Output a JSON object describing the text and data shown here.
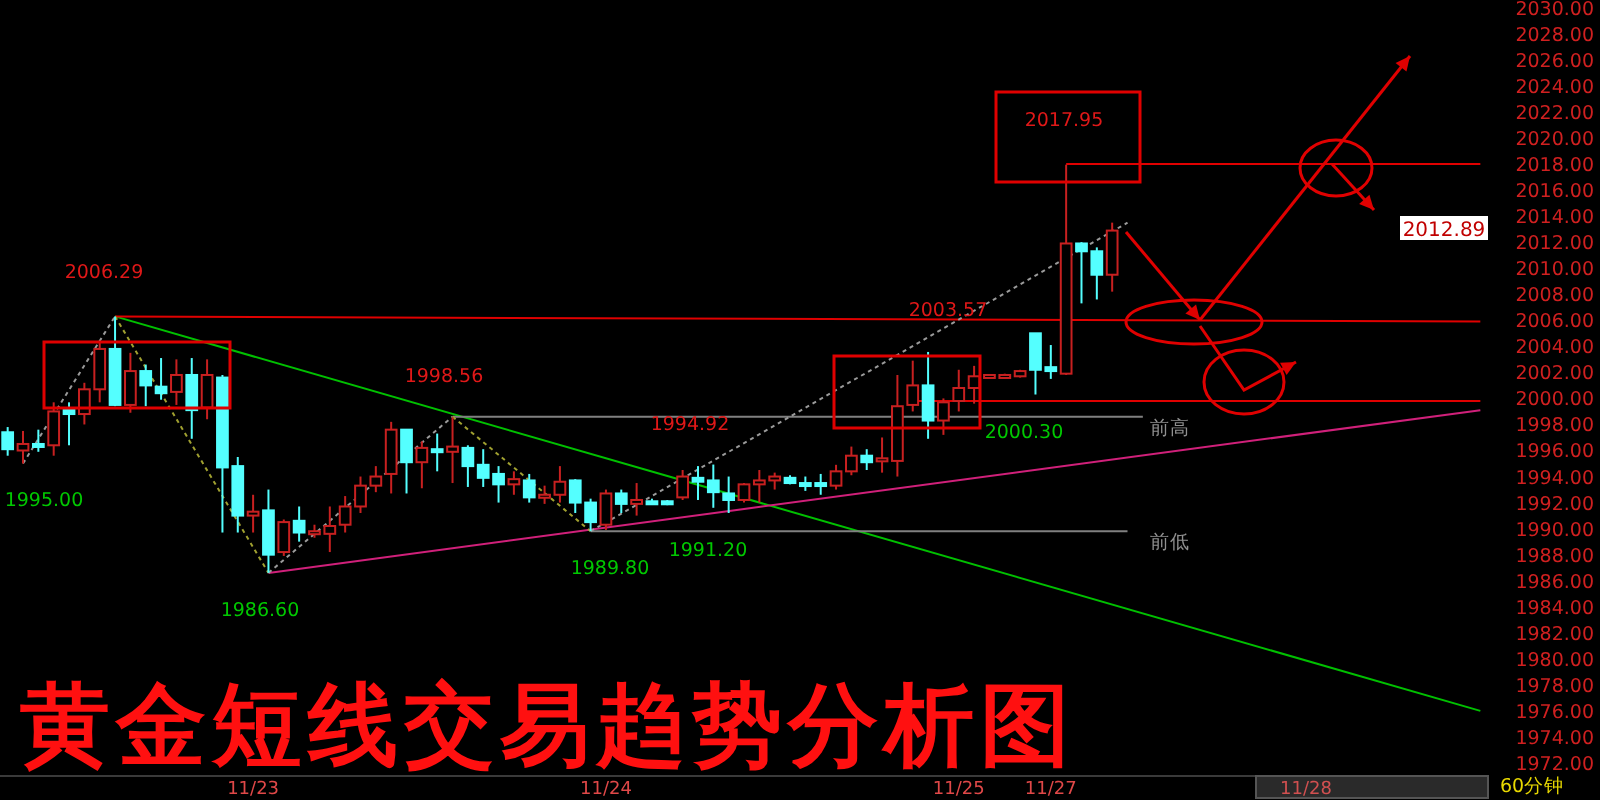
{
  "chart_data": {
    "type": "candlestick",
    "title": "黄金短线交易趋势分析图",
    "categories": [
      null,
      null,
      null,
      null,
      null,
      null,
      null,
      null,
      null,
      null,
      null,
      null,
      null,
      null,
      null,
      null,
      "11/23",
      null,
      null,
      null,
      null,
      null,
      null,
      null,
      null,
      null,
      null,
      null,
      null,
      null,
      null,
      null,
      null,
      null,
      null,
      null,
      null,
      null,
      null,
      "11/24",
      null,
      null,
      null,
      null,
      null,
      null,
      null,
      null,
      null,
      null,
      null,
      null,
      null,
      null,
      null,
      null,
      null,
      null,
      null,
      null,
      null,
      null,
      "11/25",
      null,
      null,
      null,
      null,
      null,
      "11/27",
      null,
      null,
      null,
      null,
      null,
      null,
      null,
      null,
      null,
      null,
      null,
      null,
      null,
      null,
      null,
      null,
      null,
      null,
      null,
      null,
      null,
      null,
      null,
      null,
      null,
      null,
      null,
      null
    ],
    "ohlc": [
      [
        1997.4,
        1997.8,
        1995.6,
        1996.1
      ],
      [
        1996.0,
        1997.5,
        1995.0,
        1996.5
      ],
      [
        1996.5,
        1997.6,
        1995.9,
        1996.3
      ],
      [
        1996.4,
        1999.7,
        1995.6,
        1999.0
      ],
      [
        1999.2,
        1999.7,
        1996.4,
        1998.8
      ],
      [
        1998.8,
        2001.2,
        1998.0,
        2000.7
      ],
      [
        2000.7,
        2004.3,
        1999.7,
        2003.8
      ],
      [
        2003.8,
        2006.29,
        1999.4,
        1999.5
      ],
      [
        1999.5,
        2003.5,
        1998.9,
        2002.1
      ],
      [
        2002.1,
        2002.6,
        1999.4,
        2001.0
      ],
      [
        2000.9,
        2003.1,
        1999.9,
        2000.4
      ],
      [
        2000.5,
        2003.0,
        1999.5,
        2001.8
      ],
      [
        2001.8,
        2003.1,
        1996.9,
        1999.1
      ],
      [
        1999.3,
        2003.0,
        1998.4,
        2001.8
      ],
      [
        2001.6,
        2001.8,
        1989.7,
        1994.7
      ],
      [
        1994.8,
        1995.5,
        1989.7,
        1991.0
      ],
      [
        1991.0,
        1992.6,
        1989.7,
        1991.3
      ],
      [
        1991.4,
        1993.0,
        1986.6,
        1988.0
      ],
      [
        1988.2,
        1990.7,
        1987.9,
        1990.5
      ],
      [
        1990.6,
        1991.7,
        1989.0,
        1989.7
      ],
      [
        1989.6,
        1990.3,
        1989.3,
        1989.8
      ],
      [
        1989.6,
        1991.7,
        1988.2,
        1990.2
      ],
      [
        1990.3,
        1992.5,
        1989.7,
        1991.7
      ],
      [
        1991.7,
        1994.0,
        1991.2,
        1993.3
      ],
      [
        1993.3,
        1994.8,
        1992.8,
        1994.0
      ],
      [
        1994.2,
        1998.2,
        1992.7,
        1997.6
      ],
      [
        1997.6,
        1997.6,
        1992.7,
        1995.1
      ],
      [
        1995.1,
        1996.7,
        1993.1,
        1996.2
      ],
      [
        1996.1,
        1997.3,
        1994.4,
        1996.0
      ],
      [
        1995.9,
        1998.56,
        1993.5,
        1996.3
      ],
      [
        1996.2,
        1996.4,
        1993.2,
        1994.8
      ],
      [
        1994.9,
        1996.1,
        1993.2,
        1993.9
      ],
      [
        1994.2,
        1994.8,
        1992.0,
        1993.4
      ],
      [
        1993.4,
        1994.4,
        1992.6,
        1993.8
      ],
      [
        1993.7,
        1994.2,
        1992.0,
        1992.4
      ],
      [
        1992.4,
        1993.3,
        1991.9,
        1992.6
      ],
      [
        1992.6,
        1994.8,
        1992.0,
        1993.6
      ],
      [
        1993.7,
        1993.8,
        1991.2,
        1992.0
      ],
      [
        1992.0,
        1992.3,
        1989.8,
        1990.5
      ],
      [
        1990.3,
        1993.0,
        1989.9,
        1992.7
      ],
      [
        1992.7,
        1993.0,
        1991.2,
        1991.9
      ],
      [
        1991.9,
        1993.5,
        1991.0,
        1992.2
      ],
      [
        1992.1,
        1992.3,
        1991.9,
        1992.0
      ],
      [
        1992.1,
        1992.2,
        1991.8,
        1991.9
      ],
      [
        1992.4,
        1994.5,
        1992.2,
        1994.0
      ],
      [
        1993.9,
        1994.8,
        1992.2,
        1993.6
      ],
      [
        1993.7,
        1994.92,
        1991.6,
        1992.8
      ],
      [
        1992.7,
        1994.0,
        1991.2,
        1992.2
      ],
      [
        1992.2,
        1993.5,
        1992.0,
        1993.4
      ],
      [
        1993.4,
        1994.5,
        1992.0,
        1993.7
      ],
      [
        1993.7,
        1994.3,
        1993.0,
        1994.0
      ],
      [
        1993.9,
        1994.1,
        1993.4,
        1993.5
      ],
      [
        1993.5,
        1994.0,
        1992.9,
        1993.4
      ],
      [
        1993.5,
        1994.2,
        1992.6,
        1993.3
      ],
      [
        1993.3,
        1994.9,
        1993.0,
        1994.4
      ],
      [
        1994.4,
        1996.3,
        1994.1,
        1995.6
      ],
      [
        1995.6,
        1996.1,
        1994.5,
        1995.1
      ],
      [
        1995.2,
        1997.0,
        1994.3,
        1995.4
      ],
      [
        1995.2,
        2001.8,
        1994.0,
        1999.4
      ],
      [
        1999.5,
        2002.9,
        1999.0,
        2001.0
      ],
      [
        2001.0,
        2003.57,
        1996.9,
        1998.3
      ],
      [
        1998.3,
        2000.0,
        1997.2,
        1999.7
      ],
      [
        1999.8,
        2002.2,
        1999.0,
        2000.8
      ],
      [
        2000.8,
        2002.5,
        1999.6,
        2001.7
      ],
      [
        2001.7,
        2001.8,
        2001.6,
        2001.8
      ],
      [
        2001.8,
        2001.9,
        2001.7,
        2001.8
      ],
      [
        2001.7,
        2002.2,
        2001.6,
        2002.1
      ],
      [
        2005.0,
        2005.0,
        2000.3,
        2002.2
      ],
      [
        2002.4,
        2004.1,
        2001.5,
        2002.1
      ],
      [
        2001.9,
        2017.95,
        2001.8,
        2011.9
      ],
      [
        2011.9,
        2012.0,
        2007.3,
        2011.3
      ],
      [
        2011.3,
        2011.6,
        2007.6,
        2009.5
      ],
      [
        2009.5,
        2013.5,
        2008.2,
        2012.89
      ],
      null,
      null,
      null,
      null,
      null,
      null,
      null,
      null,
      null,
      null,
      null,
      null,
      null,
      null,
      null,
      null,
      null,
      null,
      null,
      null,
      null,
      null,
      null,
      null
    ],
    "ylim": [
      1971,
      2030.6
    ],
    "yticks": [
      {
        "value": 1972,
        "label": "1972.00"
      },
      {
        "value": 1974,
        "label": "1974.00"
      },
      {
        "value": 1976,
        "label": "1976.00"
      },
      {
        "value": 1978,
        "label": "1978.00"
      },
      {
        "value": 1980,
        "label": "1980.00"
      },
      {
        "value": 1982,
        "label": "1982.00"
      },
      {
        "value": 1984,
        "label": "1984.00"
      },
      {
        "value": 1986,
        "label": "1986.00"
      },
      {
        "value": 1988,
        "label": "1988.00"
      },
      {
        "value": 1990,
        "label": "1990.00"
      },
      {
        "value": 1992,
        "label": "1992.00"
      },
      {
        "value": 1994,
        "label": "1994.00"
      },
      {
        "value": 1996,
        "label": "1996.00"
      },
      {
        "value": 1998,
        "label": "1998.00"
      },
      {
        "value": 2000,
        "label": "2000.00"
      },
      {
        "value": 2002,
        "label": "2002.00"
      },
      {
        "value": 2004,
        "label": "2004.00"
      },
      {
        "value": 2006,
        "label": "2006.00"
      },
      {
        "value": 2008,
        "label": "2008.00"
      },
      {
        "value": 2010,
        "label": "2010.00"
      },
      {
        "value": 2012,
        "label": "2012.00"
      },
      {
        "value": 2014,
        "label": "2014.00"
      },
      {
        "value": 2016,
        "label": "2016.00"
      },
      {
        "value": 2018,
        "label": "2018.00"
      },
      {
        "value": 2020,
        "label": "2020.00"
      },
      {
        "value": 2022,
        "label": "2022.00"
      },
      {
        "value": 2024,
        "label": "2024.00"
      },
      {
        "value": 2026,
        "label": "2026.00"
      },
      {
        "value": 2028,
        "label": "2028.00"
      },
      {
        "value": 2030,
        "label": "2030.00"
      }
    ],
    "series": [
      {
        "type": "line",
        "color": "#00c000",
        "line_style": "solid",
        "values": [
          null,
          null,
          null,
          null,
          null,
          null,
          null,
          2006.3,
          null,
          null,
          null,
          null,
          null,
          null,
          null,
          null,
          null,
          null,
          null,
          null,
          null,
          null,
          null,
          null,
          null,
          null,
          null,
          null,
          null,
          null,
          null,
          null,
          null,
          null,
          null,
          null,
          null,
          null,
          null,
          null,
          null,
          null,
          null,
          null,
          null,
          null,
          null,
          null,
          null,
          null,
          null,
          null,
          null,
          null,
          null,
          null,
          null,
          null,
          null,
          null,
          null,
          null,
          null,
          null,
          null,
          null,
          null,
          null,
          null,
          null,
          null,
          null,
          null,
          null,
          null,
          null,
          null,
          null,
          null,
          null,
          null,
          null,
          null,
          null,
          null,
          null,
          null,
          null,
          null,
          null,
          null,
          null,
          null,
          null,
          null,
          null,
          1976.0
        ]
      },
      {
        "type": "line",
        "color": "#e00000",
        "line_style": "solid",
        "values": [
          null,
          null,
          null,
          null,
          null,
          null,
          null,
          2006.3,
          null,
          null,
          null,
          null,
          null,
          null,
          null,
          null,
          null,
          null,
          null,
          null,
          null,
          null,
          null,
          null,
          null,
          null,
          null,
          null,
          null,
          null,
          null,
          null,
          null,
          null,
          null,
          null,
          null,
          null,
          null,
          null,
          null,
          null,
          null,
          null,
          null,
          null,
          null,
          null,
          null,
          null,
          null,
          null,
          null,
          null,
          null,
          null,
          null,
          null,
          null,
          null,
          null,
          null,
          null,
          null,
          null,
          null,
          null,
          null,
          null,
          null,
          null,
          null,
          null,
          null,
          null,
          null,
          null,
          null,
          null,
          null,
          null,
          null,
          null,
          null,
          null,
          null,
          null,
          null,
          null,
          null,
          null,
          null,
          null,
          null,
          null,
          null,
          2005.9
        ]
      },
      {
        "type": "line",
        "color": "#d0207a",
        "line_style": "solid",
        "values": [
          null,
          null,
          null,
          null,
          null,
          null,
          null,
          null,
          null,
          null,
          null,
          null,
          null,
          null,
          null,
          null,
          null,
          1986.6,
          null,
          null,
          null,
          null,
          null,
          null,
          null,
          null,
          null,
          null,
          null,
          null,
          null,
          null,
          null,
          null,
          null,
          null,
          null,
          null,
          null,
          null,
          null,
          null,
          null,
          null,
          null,
          null,
          null,
          null,
          null,
          null,
          null,
          null,
          null,
          null,
          null,
          null,
          null,
          null,
          null,
          null,
          null,
          null,
          null,
          null,
          null,
          null,
          null,
          null,
          null,
          null,
          null,
          null,
          null,
          null,
          null,
          null,
          null,
          null,
          null,
          null,
          null,
          null,
          null,
          null,
          null,
          null,
          null,
          null,
          null,
          null,
          null,
          null,
          null,
          null,
          null,
          null,
          1999.1
        ]
      },
      {
        "type": "line",
        "color": "#808080",
        "line_style": "solid",
        "values": [
          null,
          null,
          null,
          null,
          null,
          null,
          null,
          null,
          null,
          null,
          null,
          null,
          null,
          null,
          null,
          null,
          null,
          null,
          null,
          null,
          null,
          null,
          null,
          null,
          null,
          null,
          null,
          null,
          null,
          1998.6,
          null,
          null,
          null,
          null,
          null,
          null,
          null,
          null,
          null,
          null,
          null,
          null,
          null,
          null,
          null,
          null,
          null,
          null,
          null,
          null,
          null,
          null,
          null,
          null,
          null,
          null,
          null,
          null,
          null,
          null,
          null,
          null,
          null,
          null,
          null,
          null,
          null,
          null,
          null,
          null,
          null,
          null,
          null,
          null,
          1998.6,
          null,
          null,
          null,
          null,
          null,
          null,
          null,
          null,
          null,
          null,
          null,
          null,
          null,
          null,
          null,
          null,
          null,
          null,
          null,
          null,
          null,
          null
        ]
      },
      {
        "type": "line",
        "color": "#808080",
        "line_style": "solid",
        "values": [
          null,
          null,
          null,
          null,
          null,
          null,
          null,
          null,
          null,
          null,
          null,
          null,
          null,
          null,
          null,
          null,
          null,
          null,
          null,
          null,
          null,
          null,
          null,
          null,
          null,
          null,
          null,
          null,
          null,
          null,
          null,
          null,
          null,
          null,
          null,
          null,
          null,
          null,
          1989.8,
          null,
          null,
          null,
          null,
          null,
          null,
          null,
          null,
          null,
          null,
          null,
          null,
          null,
          null,
          null,
          null,
          null,
          null,
          null,
          null,
          null,
          null,
          null,
          null,
          null,
          null,
          null,
          null,
          null,
          null,
          null,
          null,
          null,
          null,
          1989.8,
          null,
          null,
          null,
          null,
          null,
          null,
          null,
          null,
          null,
          null,
          null,
          null,
          null,
          null,
          null,
          null,
          null,
          null,
          null,
          null,
          null,
          null,
          null
        ]
      },
      {
        "type": "line",
        "color": "#e00000",
        "line_style": "solid",
        "values": [
          null,
          null,
          null,
          null,
          null,
          null,
          null,
          null,
          null,
          null,
          null,
          null,
          null,
          null,
          null,
          null,
          null,
          null,
          null,
          null,
          null,
          null,
          null,
          null,
          null,
          null,
          null,
          null,
          null,
          null,
          null,
          null,
          null,
          null,
          null,
          null,
          null,
          null,
          null,
          null,
          null,
          null,
          null,
          null,
          null,
          null,
          null,
          null,
          null,
          null,
          null,
          null,
          null,
          null,
          null,
          null,
          null,
          null,
          null,
          1999.8,
          null,
          null,
          null,
          null,
          null,
          null,
          null,
          null,
          null,
          null,
          null,
          null,
          null,
          null,
          null,
          null,
          null,
          null,
          null,
          null,
          null,
          null,
          null,
          null,
          null,
          null,
          null,
          null,
          null,
          null,
          null,
          null,
          null,
          null,
          null,
          null,
          1999.8
        ]
      },
      {
        "type": "line",
        "color": "#e00000",
        "line_style": "solid",
        "values": [
          null,
          null,
          null,
          null,
          null,
          null,
          null,
          null,
          null,
          null,
          null,
          null,
          null,
          null,
          null,
          null,
          null,
          null,
          null,
          null,
          null,
          null,
          null,
          null,
          null,
          null,
          null,
          null,
          null,
          null,
          null,
          null,
          null,
          null,
          null,
          null,
          null,
          null,
          null,
          null,
          null,
          null,
          null,
          null,
          null,
          null,
          null,
          null,
          null,
          null,
          null,
          null,
          null,
          null,
          null,
          null,
          null,
          null,
          null,
          null,
          null,
          null,
          null,
          null,
          null,
          null,
          null,
          null,
          null,
          2018.0,
          null,
          null,
          null,
          null,
          null,
          null,
          null,
          null,
          null,
          null,
          null,
          null,
          null,
          null,
          null,
          null,
          null,
          null,
          null,
          null,
          null,
          null,
          null,
          null,
          null,
          null,
          2018.0
        ]
      },
      {
        "type": "line",
        "color": "#9a9a9a",
        "line_style": "dotted",
        "values": [
          null,
          1995.0,
          null,
          null,
          null,
          null,
          null,
          2006.3,
          null,
          null,
          null,
          null,
          null,
          null,
          null,
          null,
          null,
          null,
          null,
          null,
          null,
          null,
          null,
          null,
          null,
          null,
          null,
          null,
          null,
          null,
          null,
          null,
          null,
          null,
          null,
          null,
          null,
          null,
          null,
          null,
          null,
          null,
          null,
          null,
          null,
          null,
          null,
          null,
          null,
          null,
          null,
          null,
          null,
          null,
          null,
          null,
          null,
          null,
          null,
          null,
          null,
          null,
          null,
          null,
          null,
          null,
          null,
          null,
          null,
          null,
          null,
          null,
          null,
          null,
          null,
          null,
          null,
          null,
          null,
          null,
          null,
          null,
          null,
          null,
          null,
          null,
          null,
          null,
          null,
          null,
          null,
          null,
          null,
          null,
          null,
          null,
          null
        ]
      },
      {
        "type": "line",
        "color": "#9a9a9a",
        "line_style": "dotted",
        "values": [
          null,
          null,
          null,
          null,
          null,
          null,
          null,
          null,
          null,
          null,
          null,
          null,
          null,
          null,
          null,
          null,
          null,
          1986.6,
          null,
          null,
          null,
          null,
          null,
          null,
          null,
          null,
          null,
          null,
          null,
          1998.6,
          null,
          null,
          null,
          null,
          null,
          null,
          null,
          null,
          null,
          null,
          null,
          null,
          null,
          null,
          null,
          null,
          null,
          null,
          null,
          null,
          null,
          null,
          null,
          null,
          null,
          null,
          null,
          null,
          null,
          null,
          null,
          null,
          null,
          null,
          null,
          null,
          null,
          null,
          null,
          null,
          null,
          null,
          null,
          null,
          null,
          null,
          null,
          null,
          null,
          null,
          null,
          null,
          null,
          null,
          null,
          null,
          null,
          null,
          null,
          null,
          null,
          null,
          null,
          null,
          null,
          null,
          null
        ]
      },
      {
        "type": "line",
        "color": "#9a9a9a",
        "line_style": "dotted",
        "values": [
          null,
          null,
          null,
          null,
          null,
          null,
          null,
          null,
          null,
          null,
          null,
          null,
          null,
          null,
          null,
          null,
          null,
          null,
          null,
          null,
          null,
          null,
          null,
          null,
          null,
          null,
          null,
          null,
          null,
          null,
          null,
          null,
          null,
          null,
          null,
          null,
          null,
          null,
          1989.8,
          null,
          null,
          null,
          null,
          null,
          null,
          null,
          null,
          null,
          null,
          null,
          null,
          null,
          null,
          null,
          null,
          null,
          null,
          null,
          null,
          null,
          null,
          null,
          null,
          null,
          null,
          null,
          null,
          null,
          null,
          null,
          null,
          null,
          null,
          2013.5,
          null,
          null,
          null,
          null,
          null,
          null,
          null,
          null,
          null,
          null,
          null,
          null,
          null,
          null,
          null,
          null,
          null,
          null,
          null,
          null,
          null,
          null,
          null
        ]
      },
      {
        "type": "line",
        "color": "#a0a030",
        "line_style": "dotted",
        "values": [
          null,
          null,
          null,
          null,
          null,
          null,
          null,
          2006.3,
          null,
          null,
          null,
          null,
          null,
          null,
          null,
          null,
          null,
          1986.6,
          null,
          null,
          null,
          null,
          null,
          null,
          null,
          null,
          null,
          null,
          null,
          null,
          null,
          null,
          null,
          null,
          null,
          null,
          null,
          null,
          null,
          null,
          null,
          null,
          null,
          null,
          null,
          null,
          null,
          null,
          null,
          null,
          null,
          null,
          null,
          null,
          null,
          null,
          null,
          null,
          null,
          null,
          null,
          null,
          null,
          null,
          null,
          null,
          null,
          null,
          null,
          null,
          null,
          null,
          null,
          null,
          null,
          null,
          null,
          null,
          null,
          null,
          null,
          null,
          null,
          null,
          null,
          null,
          null,
          null,
          null,
          null,
          null,
          null,
          null,
          null,
          null,
          null,
          null
        ]
      },
      {
        "type": "line",
        "color": "#a0a030",
        "line_style": "dotted",
        "values": [
          null,
          null,
          null,
          null,
          null,
          null,
          null,
          null,
          null,
          null,
          null,
          null,
          null,
          null,
          null,
          null,
          null,
          null,
          null,
          null,
          null,
          null,
          null,
          null,
          null,
          null,
          null,
          null,
          null,
          1998.6,
          null,
          null,
          null,
          null,
          null,
          null,
          null,
          null,
          1989.8,
          null,
          null,
          null,
          null,
          null,
          null,
          null,
          null,
          null,
          null,
          null,
          null,
          null,
          null,
          null,
          null,
          null,
          null,
          null,
          null,
          null,
          null,
          null,
          null,
          null,
          null,
          null,
          null,
          null,
          null,
          null,
          null,
          null,
          null,
          null,
          null,
          null,
          null,
          null,
          null,
          null,
          null,
          null,
          null,
          null,
          null,
          null,
          null,
          null,
          null,
          null,
          null,
          null,
          null,
          null,
          null,
          null,
          null
        ]
      }
    ],
    "annotations": [
      "2006.29",
      "1998.56",
      "1994.92",
      "2003.57",
      "2017.95",
      "1995.00",
      "1986.60",
      "1989.80",
      "1991.20",
      "2000.30",
      "前高",
      "前低",
      "2012.89",
      "11/28",
      "60分钟"
    ]
  }
}
